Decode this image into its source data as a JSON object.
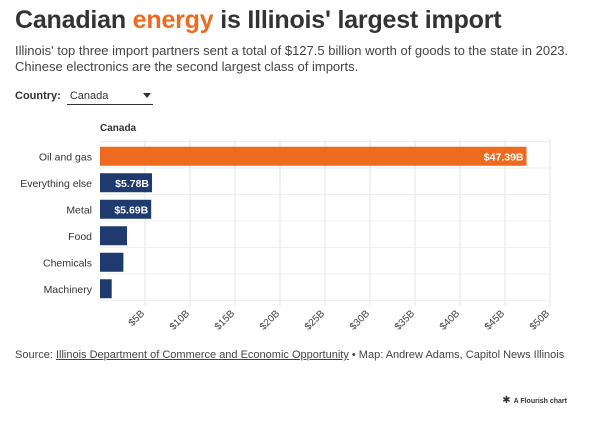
{
  "header": {
    "title_part1": "Canadian ",
    "title_accent": "energy",
    "title_part2": " is Illinois' largest import",
    "subtitle": "Illinois' top three import partners sent a total of $127.5 billion worth of goods to the state in 2023. Chinese electronics are the second largest class of imports."
  },
  "control": {
    "label": "Country:",
    "selected": "Canada"
  },
  "chart_heading": "Canada",
  "colors": {
    "accent": "#ee6a1e",
    "bar_primary": "#ee6a1e",
    "bar_secondary": "#1f3a6e",
    "grid": "#e4e4e4"
  },
  "chart_data": {
    "type": "bar",
    "orientation": "horizontal",
    "title": "Canada",
    "categories": [
      "Oil and gas",
      "Everything else",
      "Metal",
      "Food",
      "Chemicals",
      "Machinery"
    ],
    "values": [
      47.39,
      5.78,
      5.69,
      3.0,
      2.6,
      1.3
    ],
    "data_labels": [
      "$47.39B",
      "$5.78B",
      "$5.69B",
      "",
      "",
      ""
    ],
    "highlight_index": 0,
    "xlim": [
      0,
      50
    ],
    "xticks": [
      5,
      10,
      15,
      20,
      25,
      30,
      35,
      40,
      45,
      50
    ],
    "xtick_labels": [
      "$5B",
      "$10B",
      "$15B",
      "$20B",
      "$25B",
      "$30B",
      "$35B",
      "$40B",
      "$45B",
      "$50B"
    ],
    "grid": true
  },
  "footer": {
    "source_prefix": "Source: ",
    "source_link": "Illinois Department of Commerce and Economic Opportunity",
    "source_suffix": " • Map: Andrew Adams, Capitol News Illinois",
    "credit_icon": "flourish-icon",
    "credit": "A Flourish chart"
  }
}
